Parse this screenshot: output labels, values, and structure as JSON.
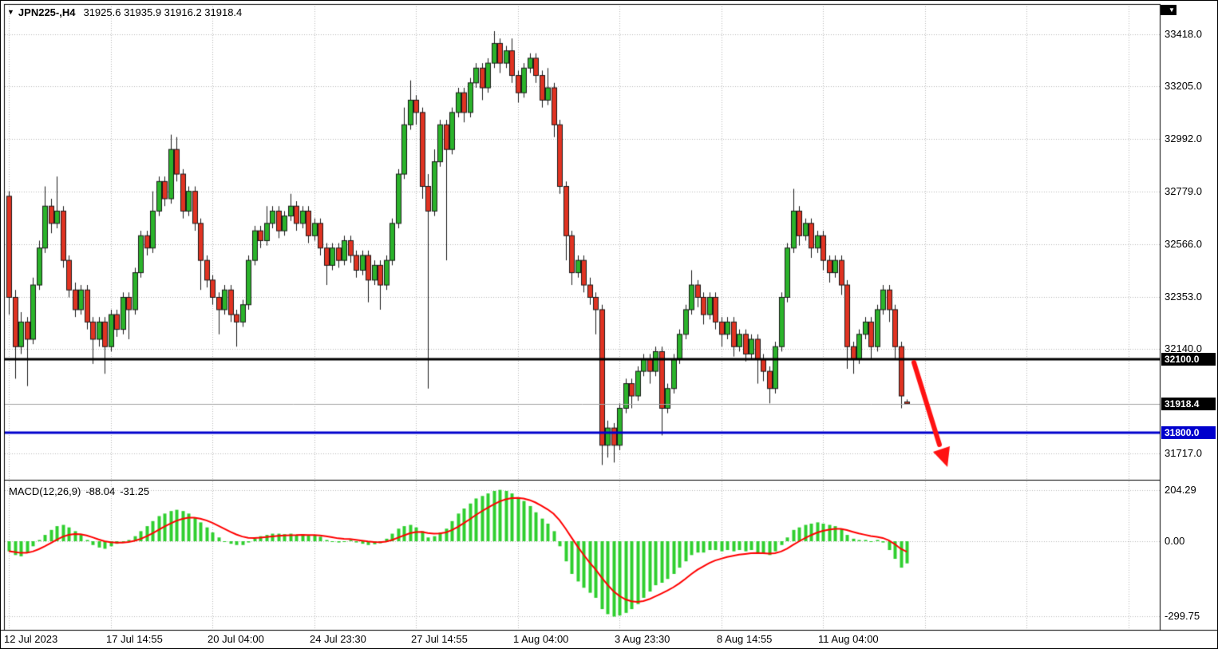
{
  "window": {
    "symbol": "JPN225-,H4",
    "ohlc_text": "31925.6 31935.9 31916.2 31918.4"
  },
  "icons": {
    "symbol_dropdown": "▼",
    "chart_shift": "▼"
  },
  "colors": {
    "background": "#ffffff",
    "frame": "#000000",
    "grid": "#b9b9b9",
    "bull": "#2bb32b",
    "bear": "#e03322",
    "wick": "#1a1a1a",
    "hline_black": "#000000",
    "hline_blue": "#0000cd",
    "current_price_line": "#a6a6a6",
    "macd_histogram": "#2fcf2f",
    "macd_signal": "#ff0000",
    "arrow": "#ff1212",
    "axis_text": "#000000"
  },
  "price_axis": {
    "ticks": [
      {
        "text": "33418.0",
        "value": 33418.0
      },
      {
        "text": "33205.0",
        "value": 33205.0
      },
      {
        "text": "32992.0",
        "value": 32992.0
      },
      {
        "text": "32779.0",
        "value": 32779.0
      },
      {
        "text": "32566.0",
        "value": 32566.0
      },
      {
        "text": "32353.0",
        "value": 32353.0
      },
      {
        "text": "32140.0",
        "value": 32140.0
      },
      {
        "text": "31717.0",
        "value": 31717.0
      }
    ],
    "special_labels": [
      {
        "text": "32100.0",
        "price": 32100.0,
        "bg": "#000000"
      },
      {
        "text": "31918.4",
        "price": 31918.4,
        "bg": "#000000"
      },
      {
        "text": "31800.0",
        "price": 31800.0,
        "bg": "#0000cd"
      }
    ]
  },
  "time_axis": {
    "labels": [
      {
        "text": "12 Jul 2023",
        "index": 0
      },
      {
        "text": "17 Jul 14:55",
        "index": 17
      },
      {
        "text": "20 Jul 04:00",
        "index": 34
      },
      {
        "text": "24 Jul 23:30",
        "index": 51
      },
      {
        "text": "27 Jul 14:55",
        "index": 68
      },
      {
        "text": "1 Aug 04:00",
        "index": 85
      },
      {
        "text": "3 Aug 23:30",
        "index": 102
      },
      {
        "text": "8 Aug 14:55",
        "index": 119
      },
      {
        "text": "11 Aug 04:00",
        "index": 136
      }
    ]
  },
  "macd_panel": {
    "label": "MACD(12,26,9)",
    "macd_value": "-88.04",
    "signal_value": "-31.25",
    "ticks": [
      {
        "text": "204.29",
        "value": 204.29
      },
      {
        "text": "0.00",
        "value": 0
      },
      {
        "text": "-299.75",
        "value": -299.75
      }
    ]
  },
  "chart_data": [
    {
      "type": "candlestick",
      "title": "JPN225- H4 (Nikkei 225 CFD, 4-hour bars)",
      "ylim": [
        31610,
        33540
      ],
      "y_ticks": [
        33418.0,
        33205.0,
        32992.0,
        32779.0,
        32566.0,
        32353.0,
        32140.0,
        31717.0
      ],
      "x_tick_labels": [
        "12 Jul 2023",
        "17 Jul 14:55",
        "20 Jul 04:00",
        "24 Jul 23:30",
        "27 Jul 14:55",
        "1 Aug 04:00",
        "3 Aug 23:30",
        "8 Aug 14:55",
        "11 Aug 04:00"
      ],
      "current_price": 31918.4,
      "current_bar_ohlc": {
        "open": 31925.6,
        "high": 31935.9,
        "low": 31916.2,
        "close": 31918.4
      },
      "horizontal_lines": [
        {
          "price": 32100.0,
          "color": "#000000",
          "width": 3,
          "name": "resistance-line"
        },
        {
          "price": 31800.0,
          "color": "#0000cd",
          "width": 3,
          "name": "support-line"
        }
      ],
      "annotation": {
        "type": "arrow",
        "color": "#ff1212",
        "note": "thick red arrow pointing down-right after last candle toward 31700 area"
      },
      "candles_ohlc": [
        [
          32760,
          32780,
          32280,
          32350
        ],
        [
          32350,
          32380,
          32020,
          32150
        ],
        [
          32150,
          32290,
          32120,
          32250
        ],
        [
          32250,
          32270,
          31990,
          32180
        ],
        [
          32180,
          32430,
          32160,
          32400
        ],
        [
          32400,
          32580,
          32380,
          32550
        ],
        [
          32550,
          32800,
          32530,
          32720
        ],
        [
          32720,
          32750,
          32610,
          32650
        ],
        [
          32650,
          32840,
          32630,
          32700
        ],
        [
          32700,
          32720,
          32470,
          32500
        ],
        [
          32500,
          32520,
          32350,
          32380
        ],
        [
          32380,
          32410,
          32270,
          32300
        ],
        [
          32300,
          32400,
          32280,
          32380
        ],
        [
          32380,
          32400,
          32220,
          32250
        ],
        [
          32250,
          32270,
          32080,
          32180
        ],
        [
          32180,
          32270,
          32150,
          32250
        ],
        [
          32250,
          32270,
          32040,
          32150
        ],
        [
          32150,
          32300,
          32130,
          32280
        ],
        [
          32280,
          32300,
          32190,
          32220
        ],
        [
          32220,
          32370,
          32200,
          32350
        ],
        [
          32350,
          32370,
          32180,
          32300
        ],
        [
          32300,
          32470,
          32280,
          32450
        ],
        [
          32450,
          32620,
          32430,
          32600
        ],
        [
          32600,
          32620,
          32520,
          32550
        ],
        [
          32550,
          32780,
          32530,
          32700
        ],
        [
          32700,
          32840,
          32680,
          32820
        ],
        [
          32820,
          32840,
          32720,
          32750
        ],
        [
          32750,
          33010,
          32730,
          32950
        ],
        [
          32950,
          33000,
          32820,
          32850
        ],
        [
          32850,
          32870,
          32670,
          32700
        ],
        [
          32700,
          32800,
          32680,
          32780
        ],
        [
          32780,
          32800,
          32620,
          32650
        ],
        [
          32650,
          32670,
          32380,
          32500
        ],
        [
          32500,
          32520,
          32390,
          32420
        ],
        [
          32420,
          32440,
          32320,
          32350
        ],
        [
          32350,
          32370,
          32200,
          32300
        ],
        [
          32300,
          32400,
          32280,
          32380
        ],
        [
          32380,
          32400,
          32250,
          32280
        ],
        [
          32280,
          32300,
          32150,
          32250
        ],
        [
          32250,
          32340,
          32230,
          32320
        ],
        [
          32320,
          32520,
          32300,
          32500
        ],
        [
          32500,
          32640,
          32480,
          32620
        ],
        [
          32620,
          32640,
          32550,
          32580
        ],
        [
          32580,
          32720,
          32560,
          32650
        ],
        [
          32650,
          32720,
          32630,
          32700
        ],
        [
          32700,
          32720,
          32590,
          32620
        ],
        [
          32620,
          32700,
          32600,
          32680
        ],
        [
          32680,
          32770,
          32660,
          32720
        ],
        [
          32720,
          32740,
          32620,
          32650
        ],
        [
          32650,
          32720,
          32630,
          32700
        ],
        [
          32700,
          32720,
          32570,
          32600
        ],
        [
          32600,
          32670,
          32580,
          32650
        ],
        [
          32650,
          32670,
          32520,
          32550
        ],
        [
          32550,
          32570,
          32400,
          32480
        ],
        [
          32480,
          32570,
          32460,
          32550
        ],
        [
          32550,
          32570,
          32470,
          32500
        ],
        [
          32500,
          32600,
          32480,
          32580
        ],
        [
          32580,
          32600,
          32490,
          32520
        ],
        [
          32520,
          32540,
          32430,
          32460
        ],
        [
          32460,
          32540,
          32440,
          32520
        ],
        [
          32520,
          32540,
          32330,
          32420
        ],
        [
          32420,
          32500,
          32400,
          32480
        ],
        [
          32480,
          32500,
          32300,
          32400
        ],
        [
          32400,
          32520,
          32380,
          32500
        ],
        [
          32500,
          32670,
          32480,
          32650
        ],
        [
          32650,
          32870,
          32630,
          32850
        ],
        [
          32850,
          33120,
          32830,
          33050
        ],
        [
          33050,
          33230,
          33030,
          33150
        ],
        [
          33150,
          33170,
          33050,
          33100
        ],
        [
          33100,
          33120,
          32750,
          32800
        ],
        [
          32800,
          32850,
          31980,
          32700
        ],
        [
          32700,
          32950,
          32680,
          32900
        ],
        [
          32900,
          33070,
          32880,
          33050
        ],
        [
          33050,
          33070,
          32500,
          32950
        ],
        [
          32950,
          33120,
          32930,
          33100
        ],
        [
          33100,
          33200,
          33080,
          33180
        ],
        [
          33180,
          33200,
          33060,
          33100
        ],
        [
          33100,
          33240,
          33080,
          33220
        ],
        [
          33220,
          33300,
          33200,
          33280
        ],
        [
          33280,
          33300,
          33150,
          33200
        ],
        [
          33200,
          33320,
          33180,
          33300
        ],
        [
          33300,
          33430,
          33280,
          33380
        ],
        [
          33380,
          33400,
          33260,
          33300
        ],
        [
          33300,
          33370,
          33280,
          33350
        ],
        [
          33350,
          33400,
          33220,
          33250
        ],
        [
          33250,
          33270,
          33140,
          33180
        ],
        [
          33180,
          33300,
          33160,
          33280
        ],
        [
          33280,
          33340,
          33260,
          33320
        ],
        [
          33320,
          33340,
          33220,
          33250
        ],
        [
          33250,
          33270,
          33120,
          33150
        ],
        [
          33150,
          33280,
          33130,
          33200
        ],
        [
          33200,
          33220,
          33000,
          33050
        ],
        [
          33050,
          33070,
          32770,
          32800
        ],
        [
          32800,
          32820,
          32500,
          32600
        ],
        [
          32600,
          32620,
          32400,
          32450
        ],
        [
          32450,
          32520,
          32430,
          32500
        ],
        [
          32500,
          32520,
          32370,
          32400
        ],
        [
          32400,
          32430,
          32320,
          32350
        ],
        [
          32350,
          32370,
          32200,
          32300
        ],
        [
          32300,
          32320,
          31670,
          31750
        ],
        [
          31750,
          31850,
          31700,
          31820
        ],
        [
          31820,
          31840,
          31680,
          31750
        ],
        [
          31750,
          31920,
          31730,
          31900
        ],
        [
          31900,
          32020,
          31880,
          32000
        ],
        [
          32000,
          32020,
          31900,
          31950
        ],
        [
          31950,
          32070,
          31930,
          32050
        ],
        [
          32050,
          32120,
          32030,
          32100
        ],
        [
          32100,
          32120,
          32000,
          32050
        ],
        [
          32050,
          32150,
          32030,
          32130
        ],
        [
          32130,
          32150,
          31790,
          31900
        ],
        [
          31900,
          32000,
          31880,
          31980
        ],
        [
          31980,
          32120,
          31960,
          32100
        ],
        [
          32100,
          32220,
          32080,
          32200
        ],
        [
          32200,
          32320,
          32180,
          32300
        ],
        [
          32300,
          32460,
          32280,
          32400
        ],
        [
          32400,
          32420,
          32310,
          32350
        ],
        [
          32350,
          32370,
          32240,
          32280
        ],
        [
          32280,
          32370,
          32260,
          32350
        ],
        [
          32350,
          32370,
          32220,
          32250
        ],
        [
          32250,
          32270,
          32150,
          32200
        ],
        [
          32200,
          32270,
          32180,
          32250
        ],
        [
          32250,
          32270,
          32110,
          32150
        ],
        [
          32150,
          32220,
          32130,
          32200
        ],
        [
          32200,
          32220,
          32090,
          32120
        ],
        [
          32120,
          32200,
          32100,
          32180
        ],
        [
          32180,
          32200,
          32000,
          32100
        ],
        [
          32100,
          32120,
          32010,
          32050
        ],
        [
          32050,
          32070,
          31920,
          31980
        ],
        [
          31980,
          32170,
          31960,
          32150
        ],
        [
          32150,
          32370,
          32130,
          32350
        ],
        [
          32350,
          32570,
          32330,
          32550
        ],
        [
          32550,
          32790,
          32530,
          32700
        ],
        [
          32700,
          32720,
          32560,
          32600
        ],
        [
          32600,
          32670,
          32580,
          32650
        ],
        [
          32650,
          32670,
          32510,
          32550
        ],
        [
          32550,
          32620,
          32530,
          32600
        ],
        [
          32600,
          32620,
          32460,
          32500
        ],
        [
          32500,
          32520,
          32410,
          32450
        ],
        [
          32450,
          32520,
          32430,
          32500
        ],
        [
          32500,
          32520,
          32360,
          32400
        ],
        [
          32400,
          32420,
          32060,
          32150
        ],
        [
          32150,
          32170,
          32040,
          32100
        ],
        [
          32100,
          32220,
          32080,
          32200
        ],
        [
          32200,
          32270,
          32180,
          32250
        ],
        [
          32250,
          32270,
          32100,
          32150
        ],
        [
          32150,
          32320,
          32130,
          32300
        ],
        [
          32300,
          32400,
          32280,
          32380
        ],
        [
          32380,
          32400,
          32250,
          32300
        ],
        [
          32300,
          32320,
          32100,
          32150
        ],
        [
          32150,
          32170,
          31900,
          31950
        ],
        [
          31925.6,
          31935.9,
          31916.2,
          31918.4
        ]
      ]
    },
    {
      "type": "bar",
      "name": "MACD(12,26,9)",
      "note": "MACD line drawn as green histogram, signal line (EMA9 of histogram) drawn as red curve",
      "last_macd": -88.04,
      "last_signal": -31.25,
      "ylim": [
        -355,
        230
      ],
      "y_ticks": [
        204.29,
        0.0,
        -299.75
      ],
      "histogram": [
        -40,
        -55,
        -60,
        -45,
        -20,
        5,
        25,
        45,
        60,
        65,
        55,
        40,
        25,
        5,
        -15,
        -25,
        -30,
        -20,
        -10,
        -5,
        5,
        20,
        40,
        60,
        80,
        100,
        110,
        120,
        125,
        120,
        110,
        95,
        75,
        55,
        35,
        15,
        0,
        -10,
        -15,
        -15,
        -5,
        10,
        20,
        25,
        30,
        30,
        28,
        30,
        25,
        28,
        22,
        25,
        18,
        5,
        0,
        -5,
        0,
        5,
        -5,
        -10,
        -15,
        -12,
        -8,
        10,
        30,
        50,
        60,
        65,
        55,
        40,
        15,
        20,
        35,
        50,
        80,
        110,
        130,
        150,
        170,
        180,
        190,
        200,
        204.29,
        200,
        190,
        175,
        160,
        140,
        115,
        90,
        70,
        40,
        -20,
        -80,
        -130,
        -160,
        -185,
        -205,
        -225,
        -270,
        -290,
        -299.75,
        -295,
        -285,
        -270,
        -250,
        -225,
        -200,
        -175,
        -165,
        -150,
        -130,
        -105,
        -80,
        -55,
        -45,
        -45,
        -35,
        -35,
        -40,
        -35,
        -40,
        -35,
        -40,
        -35,
        -45,
        -50,
        -55,
        -40,
        -15,
        15,
        45,
        55,
        65,
        70,
        75,
        70,
        65,
        60,
        50,
        25,
        10,
        5,
        5,
        0,
        5,
        -5,
        -35,
        -70,
        -105,
        -88.04
      ]
    }
  ]
}
